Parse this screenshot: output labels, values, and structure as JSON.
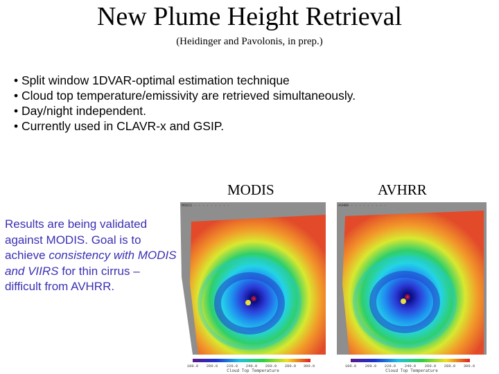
{
  "title": "New Plume Height Retrieval",
  "subtitle": "(Heidinger and Pavolonis, in prep.)",
  "bullets": [
    "• Split window 1DVAR-optimal estimation technique",
    "• Cloud top temperature/emissivity are retrieved simultaneously.",
    "• Day/night independent.",
    "• Currently used in CLAVR-x and GSIP."
  ],
  "images": {
    "modis": {
      "caption": "MODIS",
      "colorbar_title": "Cloud Top Temperature",
      "ticks": [
        "180.0",
        "200.0",
        "220.0",
        "240.0",
        "260.0",
        "280.0",
        "300.0"
      ]
    },
    "avhrr": {
      "caption": "AVHRR",
      "colorbar_title": "Cloud Top Temperature",
      "ticks": [
        "180.0",
        "200.0",
        "220.0",
        "240.0",
        "260.0",
        "280.0",
        "300.0"
      ]
    }
  },
  "note": {
    "part1": "Results are being validated against MODIS. Goal is to achieve ",
    "italic": "consistency with MODIS and VIIRS",
    "part2": " for thin cirrus – difficult from AVHRR."
  }
}
